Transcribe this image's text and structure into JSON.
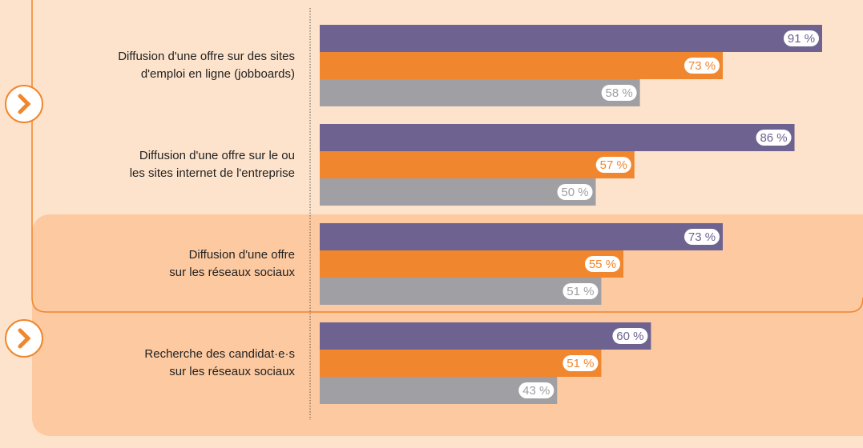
{
  "chart_data": {
    "type": "bar",
    "orientation": "horizontal",
    "categories": [
      [
        "Diffusion d'une offre sur des sites",
        "d'emploi en ligne (jobboards)"
      ],
      [
        "Diffusion d'une offre sur le ou",
        "les sites internet de l'entreprise"
      ],
      [
        "Diffusion d'une offre",
        "sur les réseaux sociaux"
      ],
      [
        "Recherche des candidat·e·s",
        "sur les réseaux sociaux"
      ]
    ],
    "series": [
      {
        "color": "#6e6390",
        "values": [
          91,
          86,
          73,
          60
        ],
        "value_labels": [
          "91 %",
          "86 %",
          "73 %",
          "60 %"
        ]
      },
      {
        "color": "#f0862d",
        "values": [
          73,
          57,
          55,
          51
        ],
        "value_labels": [
          "73 %",
          "57 %",
          "55 %",
          "51 %"
        ]
      },
      {
        "color": "#a0a0a4",
        "values": [
          58,
          50,
          51,
          43
        ],
        "value_labels": [
          "58 %",
          "50 %",
          "51 %",
          "43 %"
        ]
      }
    ],
    "xlim": [
      0,
      100
    ]
  }
}
